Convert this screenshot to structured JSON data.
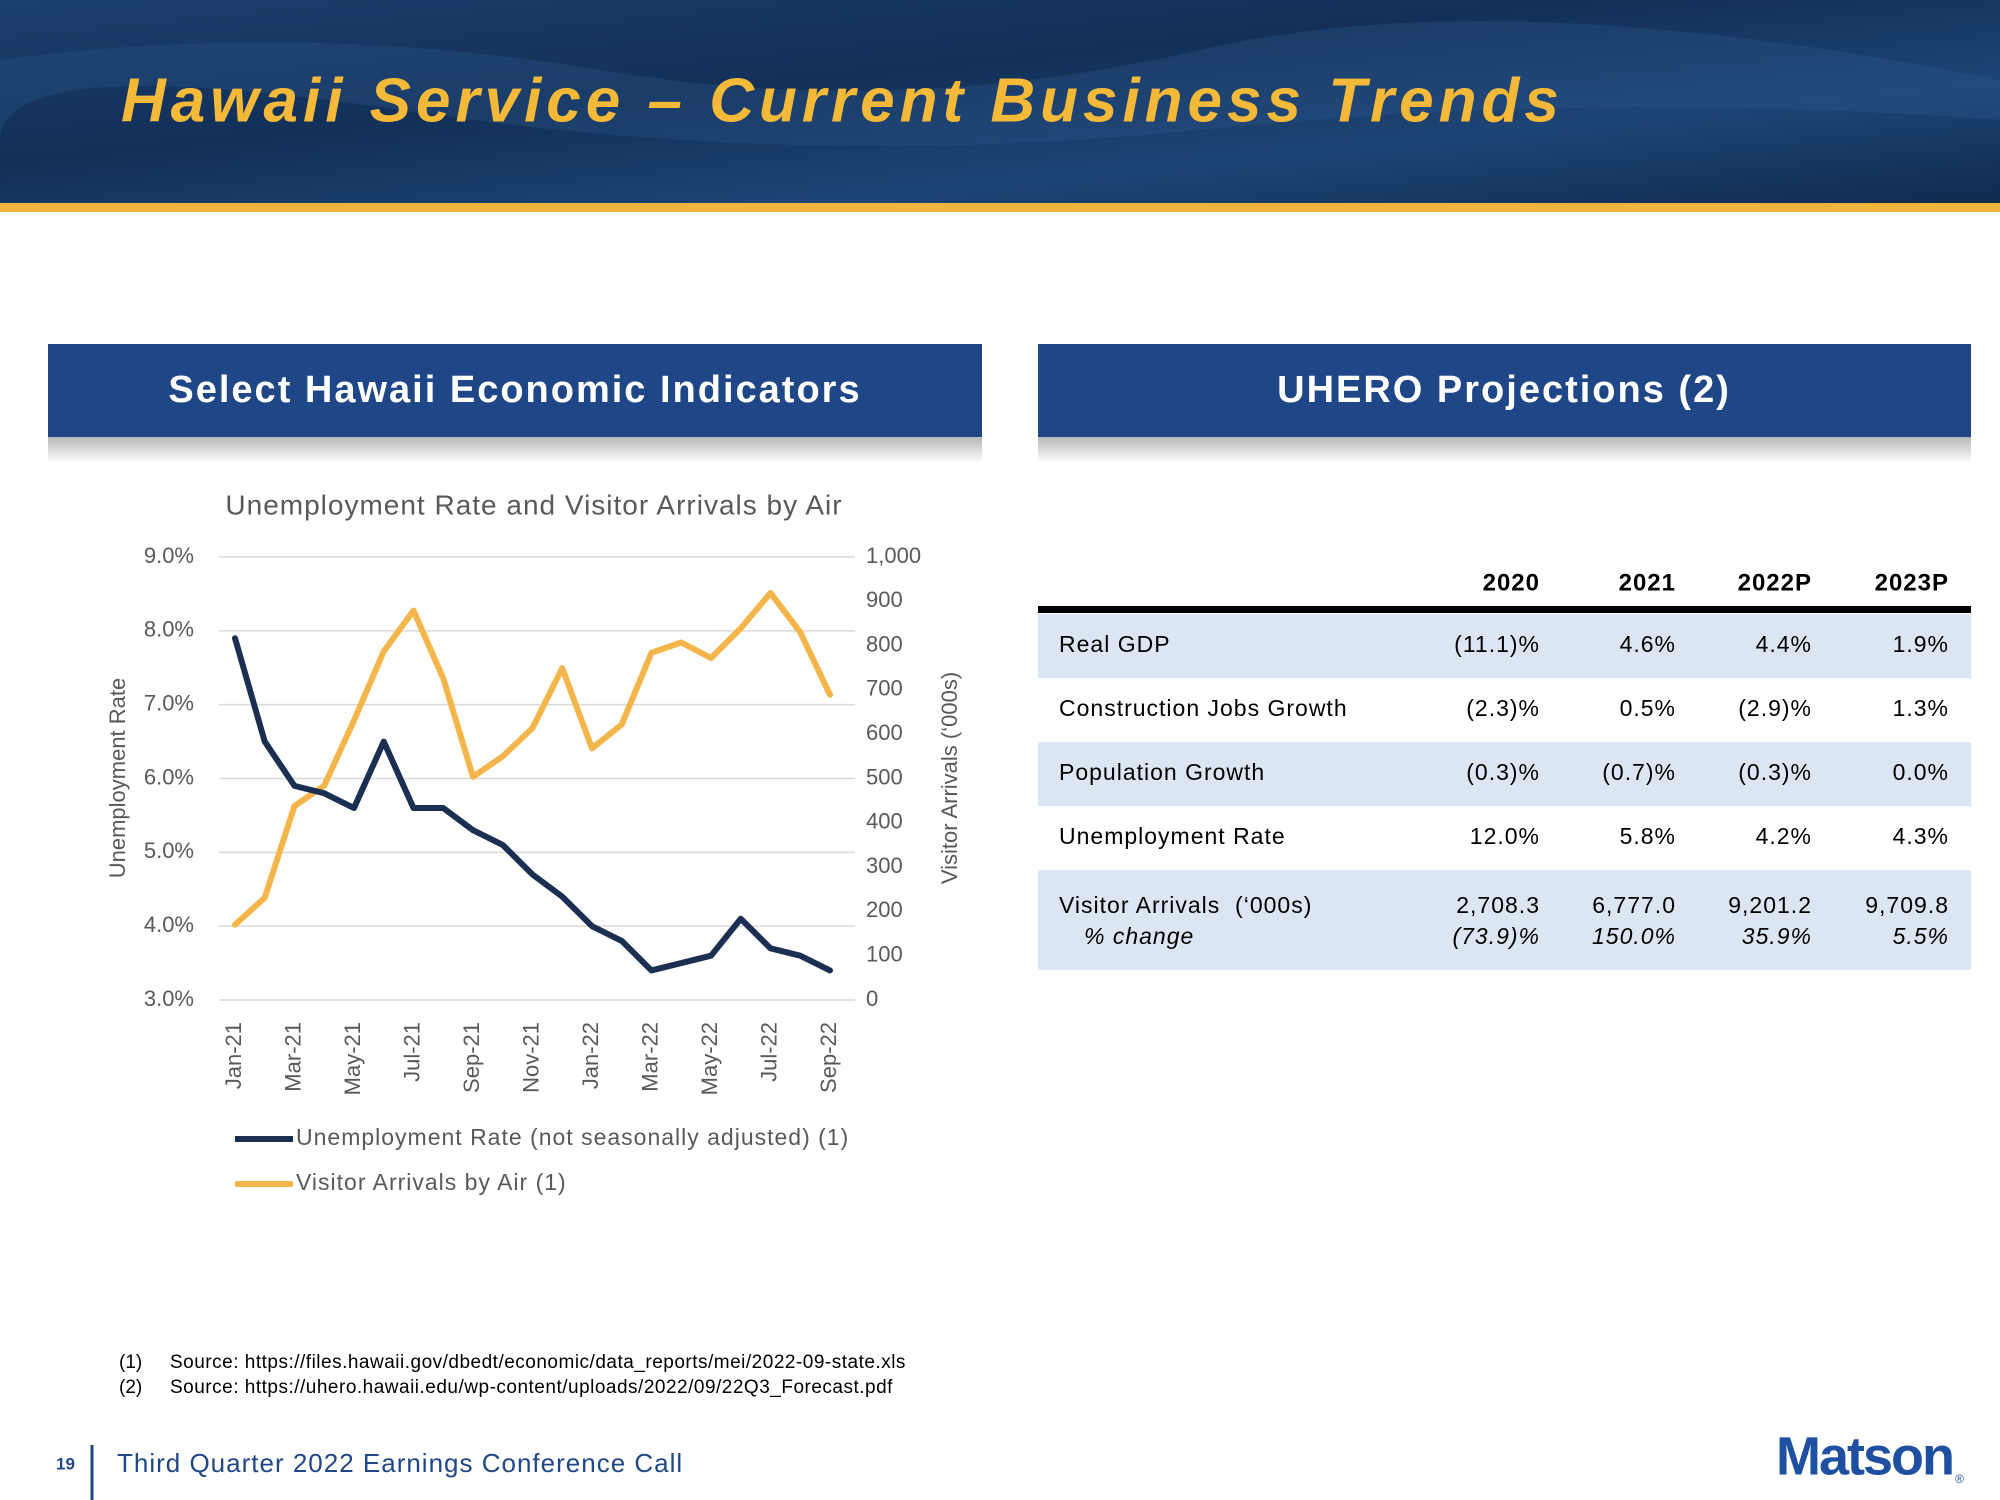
{
  "header": {
    "title": "Hawaii Service – Current Business Trends"
  },
  "left_panel": {
    "title": "Select Hawaii Economic Indicators"
  },
  "right_panel": {
    "title": "UHERO Projections (2)"
  },
  "chart_data": {
    "type": "line",
    "title": "Unemployment Rate and Visitor Arrivals by Air",
    "categories": [
      "Jan-21",
      null,
      "Mar-21",
      null,
      "May-21",
      null,
      "Jul-21",
      null,
      "Sep-21",
      null,
      "Nov-21",
      null,
      "Jan-22",
      null,
      "Mar-22",
      null,
      "May-22",
      null,
      "Jul-22",
      null,
      "Sep-22"
    ],
    "series": [
      {
        "name": "Unemployment Rate (not seasonally adjusted) (1)",
        "color": "#1b2f52",
        "axis": "y",
        "values": [
          7.9,
          6.5,
          5.9,
          5.8,
          5.6,
          6.5,
          5.6,
          5.6,
          5.3,
          5.1,
          4.7,
          4.4,
          4.0,
          3.8,
          3.4,
          3.5,
          3.6,
          4.1,
          3.7,
          3.6,
          3.4
        ]
      },
      {
        "name": "Visitor Arrivals by Air (1)",
        "color": "#f4b54a",
        "axis": "y2",
        "values": [
          170,
          231,
          438,
          484,
          631,
          787,
          879,
          726,
          504,
          550,
          614,
          749,
          568,
          622,
          784,
          807,
          772,
          839,
          919,
          830,
          689
        ]
      }
    ],
    "ylabel": "Unemployment Rate",
    "y2label": "Visitor Arrivals (‘000s)",
    "ylim": [
      3,
      9
    ],
    "yticks": [
      {
        "value": 3,
        "label": "3.0%"
      },
      {
        "value": 4,
        "label": "4.0%"
      },
      {
        "value": 5,
        "label": "5.0%"
      },
      {
        "value": 6,
        "label": "6.0%"
      },
      {
        "value": 7,
        "label": "7.0%"
      },
      {
        "value": 8,
        "label": "8.0%"
      },
      {
        "value": 9,
        "label": "9.0%"
      }
    ],
    "y2lim": [
      0,
      1000
    ],
    "y2ticks": [
      0,
      100,
      200,
      300,
      400,
      500,
      600,
      700,
      800,
      900,
      {
        "value": 1000,
        "label": "1,000"
      }
    ],
    "grid": true,
    "legend": "bottom"
  },
  "table": {
    "columns": [
      "2020",
      "2021",
      "2022P",
      "2023P"
    ],
    "rows": [
      {
        "label": "Real GDP",
        "values": [
          "(11.1)%",
          "4.6%",
          "4.4%",
          "1.9%"
        ]
      },
      {
        "label": "Construction Jobs Growth",
        "values": [
          "(2.3)%",
          "0.5%",
          "(2.9)%",
          "1.3%"
        ]
      },
      {
        "label": "Population Growth",
        "values": [
          "(0.3)%",
          "(0.7)%",
          "(0.3)%",
          "0.0%"
        ]
      },
      {
        "label": "Unemployment Rate",
        "values": [
          "12.0%",
          "5.8%",
          "4.2%",
          "4.3%"
        ]
      },
      {
        "label": "Visitor Arrivals  (‘000s)",
        "values": [
          "2,708.3",
          "6,777.0",
          "9,201.2",
          "9,709.8"
        ],
        "sublabel": "% change",
        "subvalues": [
          "(73.9)%",
          "150.0%",
          "35.9%",
          "5.5%"
        ]
      }
    ]
  },
  "footnotes": [
    {
      "marker": "(1)",
      "text": "Source: https://files.hawaii.gov/dbedt/economic/data_reports/mei/2022-09-state.xls"
    },
    {
      "marker": "(2)",
      "text": "Source: https://uhero.hawaii.edu/wp-content/uploads/2022/09/22Q3_Forecast.pdf"
    }
  ],
  "footer": {
    "page": "19",
    "text": "Third Quarter 2022 Earnings Conference Call",
    "logo": "Matson",
    "logo_mark": "®"
  }
}
